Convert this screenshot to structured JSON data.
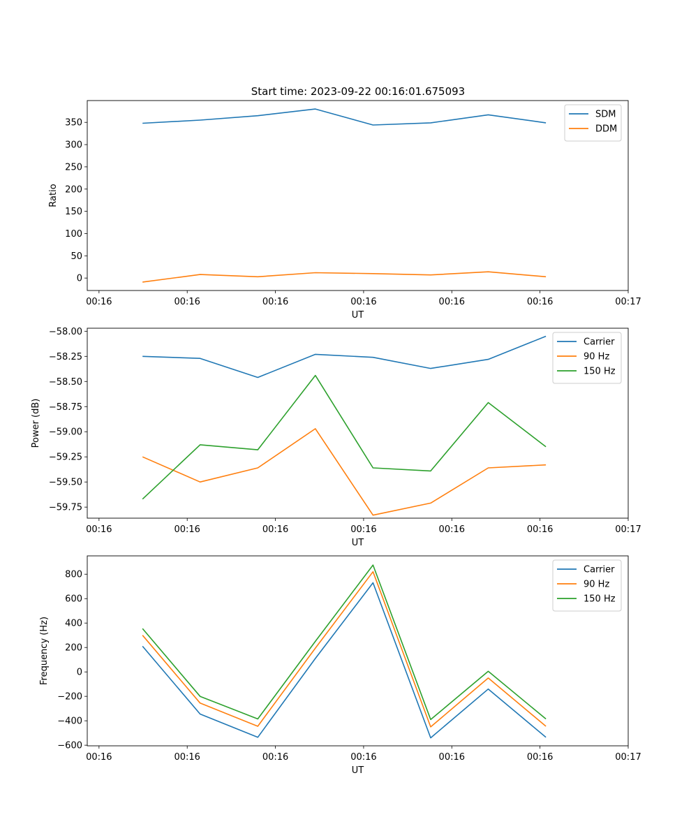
{
  "figure_title": "Start time: 2023-09-22 00:16:01.675093",
  "chart_data": [
    {
      "type": "line",
      "title": "Start time: 2023-09-22 00:16:01.675093",
      "xlabel": "UT",
      "ylabel": "Ratio",
      "xlim": [
        -0.1,
        4.5
      ],
      "x_ticks": [
        0,
        0.75,
        1.5,
        2.25,
        3,
        3.75,
        4.5
      ],
      "x_tick_labels": [
        "00:16",
        "00:16",
        "00:16",
        "00:16",
        "00:16",
        "00:16",
        "00:17"
      ],
      "ylim": [
        -28,
        399
      ],
      "y_ticks": [
        0,
        50,
        100,
        150,
        200,
        250,
        300,
        350
      ],
      "y_tick_labels": [
        "0",
        "50",
        "100",
        "150",
        "200",
        "250",
        "300",
        "350"
      ],
      "x": [
        0.37,
        0.86,
        1.35,
        1.84,
        2.33,
        2.82,
        3.31,
        3.8
      ],
      "series": [
        {
          "name": "SDM",
          "color": "#1f77b4",
          "values": [
            348,
            355,
            365,
            380,
            344,
            349,
            367,
            349
          ]
        },
        {
          "name": "DDM",
          "color": "#ff7f0e",
          "values": [
            -9,
            8,
            3,
            12,
            10,
            7,
            14,
            3
          ]
        }
      ],
      "legend": "top-right"
    },
    {
      "type": "line",
      "title": "",
      "xlabel": "UT",
      "ylabel": "Power (dB)",
      "xlim": [
        -0.1,
        4.5
      ],
      "x_ticks": [
        0,
        0.75,
        1.5,
        2.25,
        3,
        3.75,
        4.5
      ],
      "x_tick_labels": [
        "00:16",
        "00:16",
        "00:16",
        "00:16",
        "00:16",
        "00:16",
        "00:17"
      ],
      "ylim": [
        -59.86,
        -57.97
      ],
      "y_ticks": [
        -59.75,
        -59.5,
        -59.25,
        -59.0,
        -58.75,
        -58.5,
        -58.25,
        -58.0
      ],
      "y_tick_labels": [
        "−59.75",
        "−59.50",
        "−59.25",
        "−59.00",
        "−58.75",
        "−58.50",
        "−58.25",
        "−58.00"
      ],
      "x": [
        0.37,
        0.86,
        1.35,
        1.84,
        2.33,
        2.82,
        3.31,
        3.8
      ],
      "series": [
        {
          "name": "Carrier",
          "color": "#1f77b4",
          "values": [
            -58.25,
            -58.27,
            -58.46,
            -58.23,
            -58.26,
            -58.37,
            -58.28,
            -58.05
          ]
        },
        {
          "name": "90 Hz",
          "color": "#ff7f0e",
          "values": [
            -59.25,
            -59.5,
            -59.36,
            -58.97,
            -59.83,
            -59.71,
            -59.36,
            -59.33
          ]
        },
        {
          "name": "150 Hz",
          "color": "#2ca02c",
          "values": [
            -59.67,
            -59.13,
            -59.18,
            -58.44,
            -59.36,
            -59.39,
            -58.71,
            -59.15
          ]
        }
      ],
      "legend": "top-right"
    },
    {
      "type": "line",
      "title": "",
      "xlabel": "UT",
      "ylabel": "Frequency (Hz)",
      "xlim": [
        -0.1,
        4.5
      ],
      "x_ticks": [
        0,
        0.75,
        1.5,
        2.25,
        3,
        3.75,
        4.5
      ],
      "x_tick_labels": [
        "00:16",
        "00:16",
        "00:16",
        "00:16",
        "00:16",
        "00:16",
        "00:17"
      ],
      "ylim": [
        -605,
        950
      ],
      "y_ticks": [
        -600,
        -400,
        -200,
        0,
        200,
        400,
        600,
        800
      ],
      "y_tick_labels": [
        "−600",
        "−400",
        "−200",
        "0",
        "200",
        "400",
        "600",
        "800"
      ],
      "x": [
        0.37,
        0.86,
        1.35,
        1.84,
        2.33,
        2.82,
        3.31,
        3.8
      ],
      "series": [
        {
          "name": "Carrier",
          "color": "#1f77b4",
          "values": [
            210,
            -345,
            -535,
            110,
            730,
            -540,
            -140,
            -535
          ]
        },
        {
          "name": "90 Hz",
          "color": "#ff7f0e",
          "values": [
            300,
            -255,
            -445,
            195,
            820,
            -450,
            -50,
            -445
          ]
        },
        {
          "name": "150 Hz",
          "color": "#2ca02c",
          "values": [
            355,
            -200,
            -385,
            250,
            875,
            -390,
            5,
            -385
          ]
        }
      ],
      "legend": "top-right"
    }
  ]
}
